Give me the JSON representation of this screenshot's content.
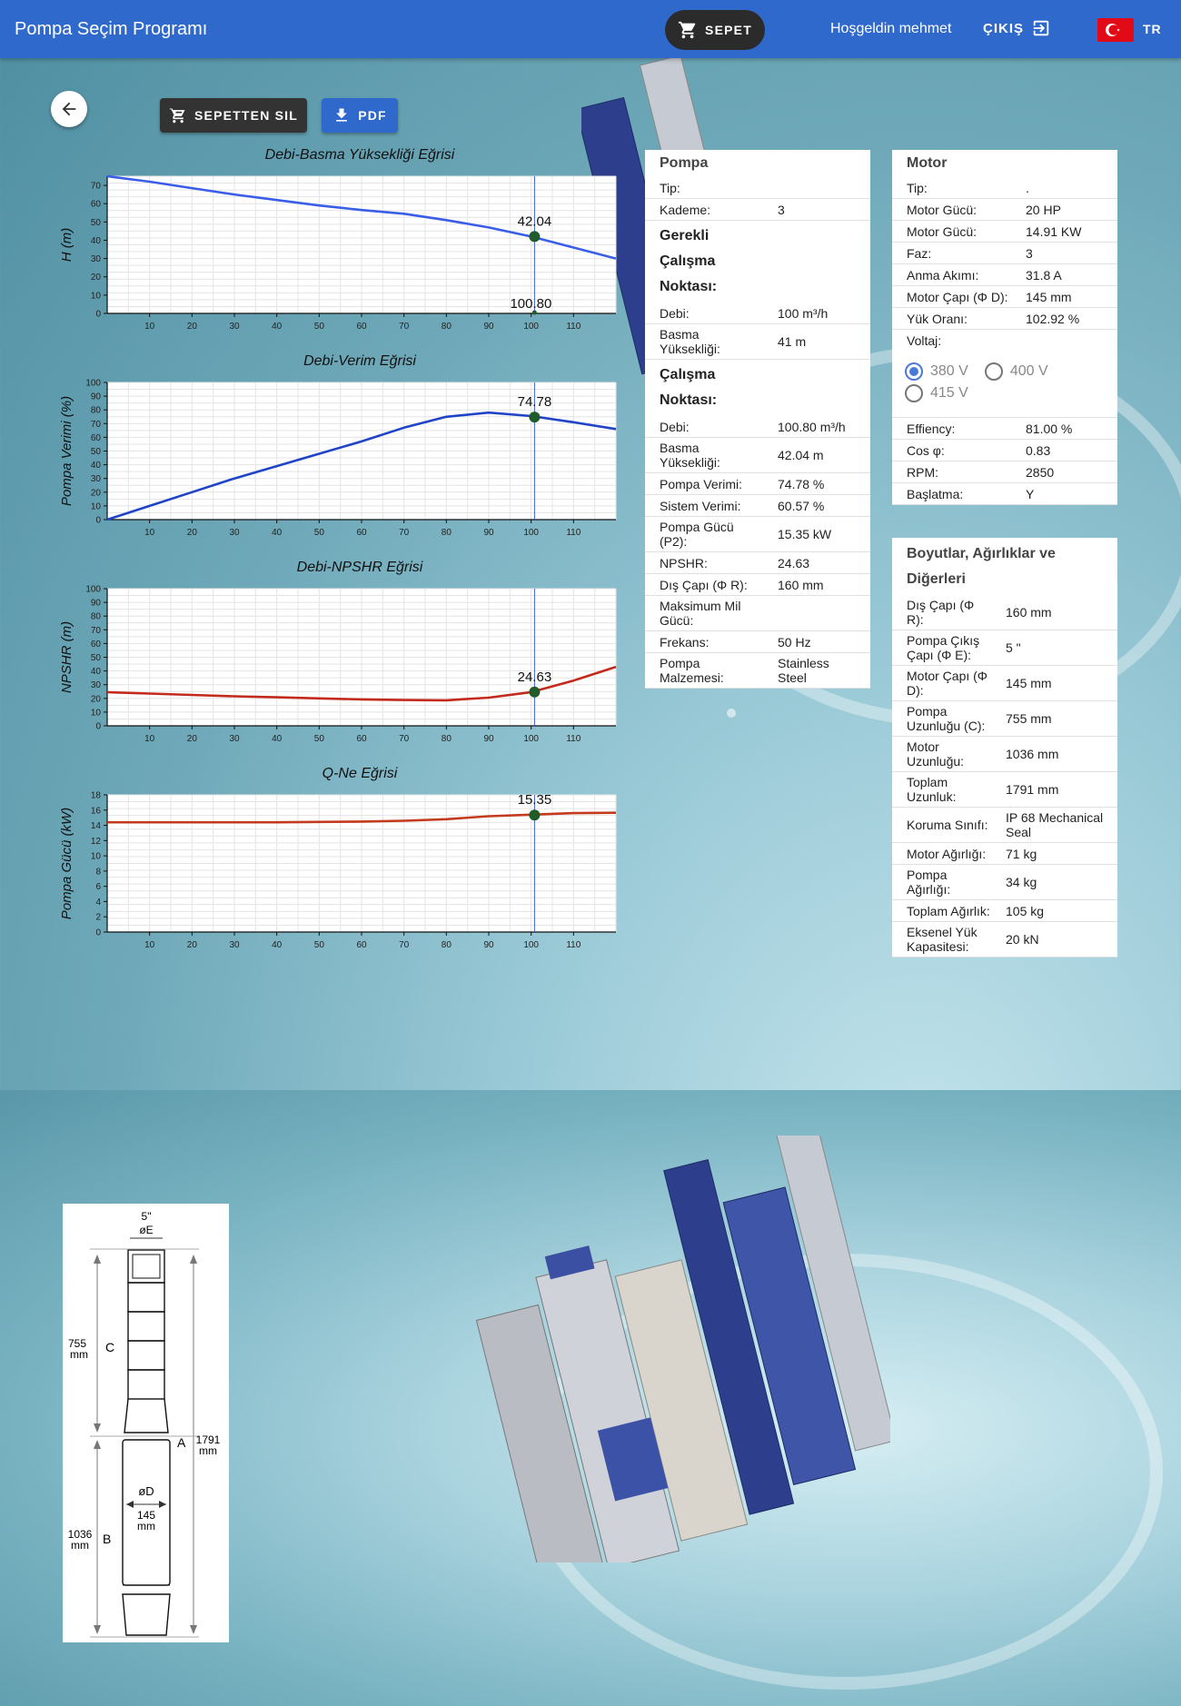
{
  "header": {
    "title": "Pompa Seçim Programı",
    "cart_label": "SEPET",
    "welcome": "Hoşgeldin mehmet",
    "logout_label": "ÇIKIŞ",
    "language": "TR"
  },
  "toolbar": {
    "remove_label": "SEPETTEN SIL",
    "pdf_label": "PDF"
  },
  "colors": {
    "primary": "#2f69cc",
    "head_curve": "#3a5ee8",
    "eff_curve": "#2044c8",
    "npshr_curve": "#c42a1c",
    "power_curve": "#c43a1c",
    "marker": "#1f5c2a"
  },
  "chart_data": [
    {
      "type": "line",
      "title": "Debi-Basma Yüksekliği Eğrisi",
      "ylabel": "H (m)",
      "xlim": [
        0,
        120
      ],
      "ylim": [
        0,
        75
      ],
      "yticks": [
        0,
        10,
        20,
        30,
        40,
        50,
        60,
        70
      ],
      "xticks": [
        10,
        20,
        30,
        40,
        50,
        60,
        70,
        80,
        90,
        100,
        110
      ],
      "x": [
        0,
        10,
        20,
        30,
        40,
        50,
        60,
        70,
        80,
        90,
        100,
        110,
        120
      ],
      "y": [
        75,
        72,
        68.5,
        65,
        62,
        59,
        56.5,
        54.5,
        51,
        47,
        42,
        36,
        30
      ],
      "marker": {
        "x": 100.8,
        "y": 42.04,
        "label": "42.04"
      },
      "vline_label": "100.80"
    },
    {
      "type": "line",
      "title": "Debi-Verim Eğrisi",
      "ylabel": "Pompa Verimi (%)",
      "xlim": [
        0,
        120
      ],
      "ylim": [
        0,
        100
      ],
      "yticks": [
        0,
        10,
        20,
        30,
        40,
        50,
        60,
        70,
        80,
        90,
        100
      ],
      "xticks": [
        10,
        20,
        30,
        40,
        50,
        60,
        70,
        80,
        90,
        100,
        110
      ],
      "x": [
        0,
        10,
        20,
        30,
        40,
        50,
        60,
        70,
        80,
        90,
        100,
        110,
        120
      ],
      "y": [
        0,
        10,
        20,
        30,
        39,
        48,
        57,
        67,
        75,
        78,
        75.5,
        71,
        66
      ],
      "marker": {
        "x": 100.8,
        "y": 74.78,
        "label": "74.78"
      }
    },
    {
      "type": "line",
      "title": "Debi-NPSHR Eğrisi",
      "ylabel": "NPSHR (m)",
      "xlim": [
        0,
        120
      ],
      "ylim": [
        0,
        100
      ],
      "yticks": [
        0,
        10,
        20,
        30,
        40,
        50,
        60,
        70,
        80,
        90,
        100
      ],
      "xticks": [
        10,
        20,
        30,
        40,
        50,
        60,
        70,
        80,
        90,
        100,
        110
      ],
      "x": [
        0,
        10,
        20,
        30,
        40,
        50,
        60,
        70,
        80,
        90,
        100,
        110,
        120
      ],
      "y": [
        24.5,
        23.5,
        22.5,
        21.5,
        20.8,
        20,
        19.3,
        18.8,
        18.6,
        20.5,
        24.6,
        33,
        43
      ],
      "marker": {
        "x": 100.8,
        "y": 24.63,
        "label": "24.63"
      }
    },
    {
      "type": "line",
      "title": "Q-Ne Eğrisi",
      "ylabel": "Pompa Gücü (kW)",
      "xlim": [
        0,
        120
      ],
      "ylim": [
        0,
        18
      ],
      "yticks": [
        0,
        2,
        4,
        6,
        8,
        10,
        12,
        14,
        16,
        18
      ],
      "xticks": [
        10,
        20,
        30,
        40,
        50,
        60,
        70,
        80,
        90,
        100,
        110
      ],
      "x": [
        0,
        10,
        20,
        30,
        40,
        50,
        60,
        70,
        80,
        90,
        100,
        110,
        120
      ],
      "y": [
        14.4,
        14.4,
        14.4,
        14.4,
        14.4,
        14.45,
        14.5,
        14.6,
        14.8,
        15.2,
        15.4,
        15.6,
        15.65
      ],
      "marker": {
        "x": 100.8,
        "y": 15.35,
        "label": "15.35"
      }
    }
  ],
  "pump": {
    "heading": "Pompa",
    "rows_top": [
      {
        "k": "Tip:",
        "v": ""
      },
      {
        "k": "Kademe:",
        "v": "3"
      }
    ],
    "required_title": "Gerekli Çalışma Noktası:",
    "rows_required": [
      {
        "k": "Debi:",
        "v": "100 m³/h"
      },
      {
        "k": "Basma Yüksekliği:",
        "v": "41 m"
      }
    ],
    "working_title": "Çalışma Noktası:",
    "rows_working": [
      {
        "k": "Debi:",
        "v": "100.80 m³/h"
      },
      {
        "k": "Basma Yüksekliği:",
        "v": "42.04 m"
      },
      {
        "k": "Pompa Verimi:",
        "v": "74.78 %"
      },
      {
        "k": "Sistem Verimi:",
        "v": "60.57 %"
      },
      {
        "k": "Pompa Gücü (P2):",
        "v": "15.35 kW"
      },
      {
        "k": "NPSHR:",
        "v": "24.63"
      },
      {
        "k": "Dış Çapı (Φ R):",
        "v": "160 mm"
      },
      {
        "k": "Maksimum Mil Gücü:",
        "v": ""
      },
      {
        "k": "Frekans:",
        "v": "50 Hz"
      },
      {
        "k": "Pompa Malzemesi:",
        "v": "Stainless Steel"
      }
    ]
  },
  "motor": {
    "heading": "Motor",
    "rows": [
      {
        "k": "Tip:",
        "v": "."
      },
      {
        "k": "Motor Gücü:",
        "v": "20 HP"
      },
      {
        "k": "Motor Gücü:",
        "v": "14.91 KW"
      },
      {
        "k": "Faz:",
        "v": "3"
      },
      {
        "k": "Anma Akımı:",
        "v": "31.8 A"
      },
      {
        "k": "Motor Çapı (Φ D):",
        "v": "145 mm"
      },
      {
        "k": "Yük Oranı:",
        "v": "102.92 %"
      }
    ],
    "voltage_label": "Voltaj:",
    "voltages": [
      {
        "label": "380 V",
        "selected": true
      },
      {
        "label": "400 V",
        "selected": false
      },
      {
        "label": "415 V",
        "selected": false
      }
    ],
    "rows_bottom": [
      {
        "k": "Effiency:",
        "v": "81.00 %"
      },
      {
        "k": "Cos φ:",
        "v": "0.83"
      },
      {
        "k": "RPM:",
        "v": "2850"
      },
      {
        "k": "Başlatma:",
        "v": "Y"
      }
    ]
  },
  "dimensions": {
    "heading": "Boyutlar, Ağırlıklar ve Diğerleri",
    "rows": [
      {
        "k": "Dış Çapı (Φ R):",
        "v": "160 mm"
      },
      {
        "k": "Pompa Çıkış Çapı (Φ E):",
        "v": "5 \""
      },
      {
        "k": "Motor Çapı (Φ D):",
        "v": "145 mm"
      },
      {
        "k": "Pompa Uzunluğu (C):",
        "v": "755 mm"
      },
      {
        "k": "Motor Uzunluğu:",
        "v": "1036 mm"
      },
      {
        "k": "Toplam Uzunluk:",
        "v": "1791 mm"
      },
      {
        "k": "Koruma Sınıfı:",
        "v": "IP 68 Mechanical Seal"
      },
      {
        "k": "Motor Ağırlığı:",
        "v": "71 kg"
      },
      {
        "k": "Pompa Ağırlığı:",
        "v": "34 kg"
      },
      {
        "k": "Toplam Ağırlık:",
        "v": "105 kg"
      },
      {
        "k": "Eksenel Yük Kapasitesi:",
        "v": "20 kN"
      }
    ]
  },
  "diagram": {
    "outlet": "5\"",
    "outlet_symbol": "øE",
    "pump_len": "755",
    "motor_len": "1036",
    "total_len": "1791",
    "unit": "mm",
    "motor_dia_symbol": "øD",
    "motor_dia": "145",
    "c": "C",
    "a": "A",
    "b": "B"
  }
}
